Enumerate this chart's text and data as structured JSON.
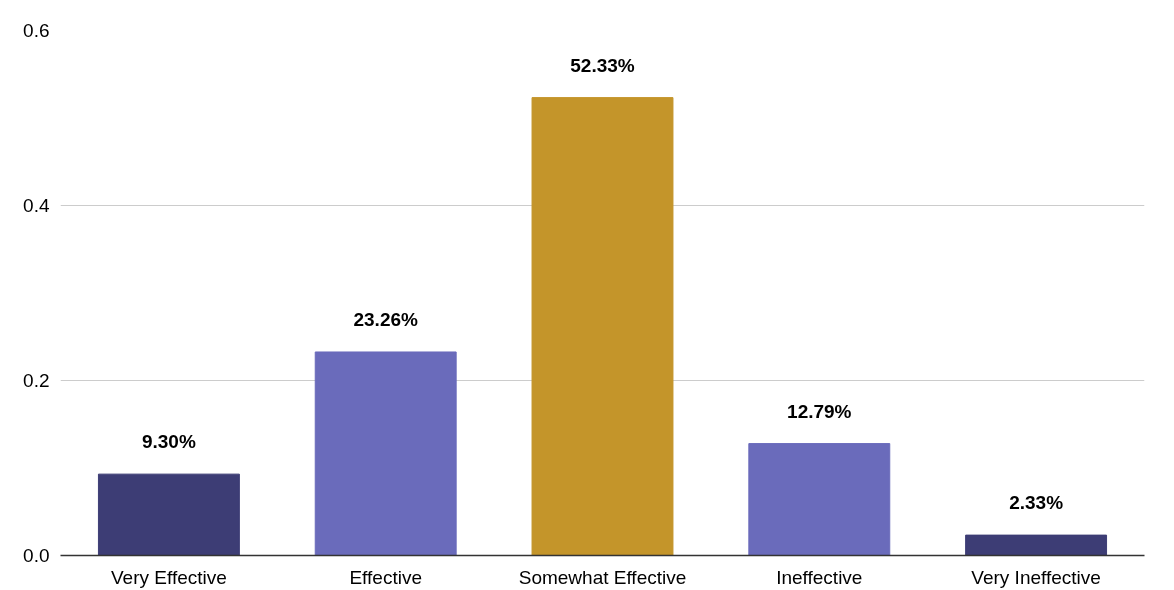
{
  "chart_data": {
    "type": "bar",
    "categories": [
      "Very Effective",
      "Effective",
      "Somewhat Effective",
      "Ineffective",
      "Very Ineffective"
    ],
    "values": [
      0.093,
      0.2326,
      0.5233,
      0.1279,
      0.0233
    ],
    "colors": [
      "#3d3d75",
      "#6a6bbb",
      "#c4952a",
      "#6a6bbb",
      "#3d3d75"
    ],
    "value_labels": [
      "9.30%",
      "23.26%",
      "52.33%",
      "12.79%",
      "2.33%"
    ],
    "ylim": [
      0,
      0.6
    ],
    "yticks": [
      {
        "value": 0,
        "label": "0.0"
      },
      {
        "value": 0.2,
        "label": "0.2"
      },
      {
        "value": 0.4,
        "label": "0.4"
      },
      {
        "value": 0.6,
        "label": "0.6"
      }
    ],
    "grid": "y"
  }
}
